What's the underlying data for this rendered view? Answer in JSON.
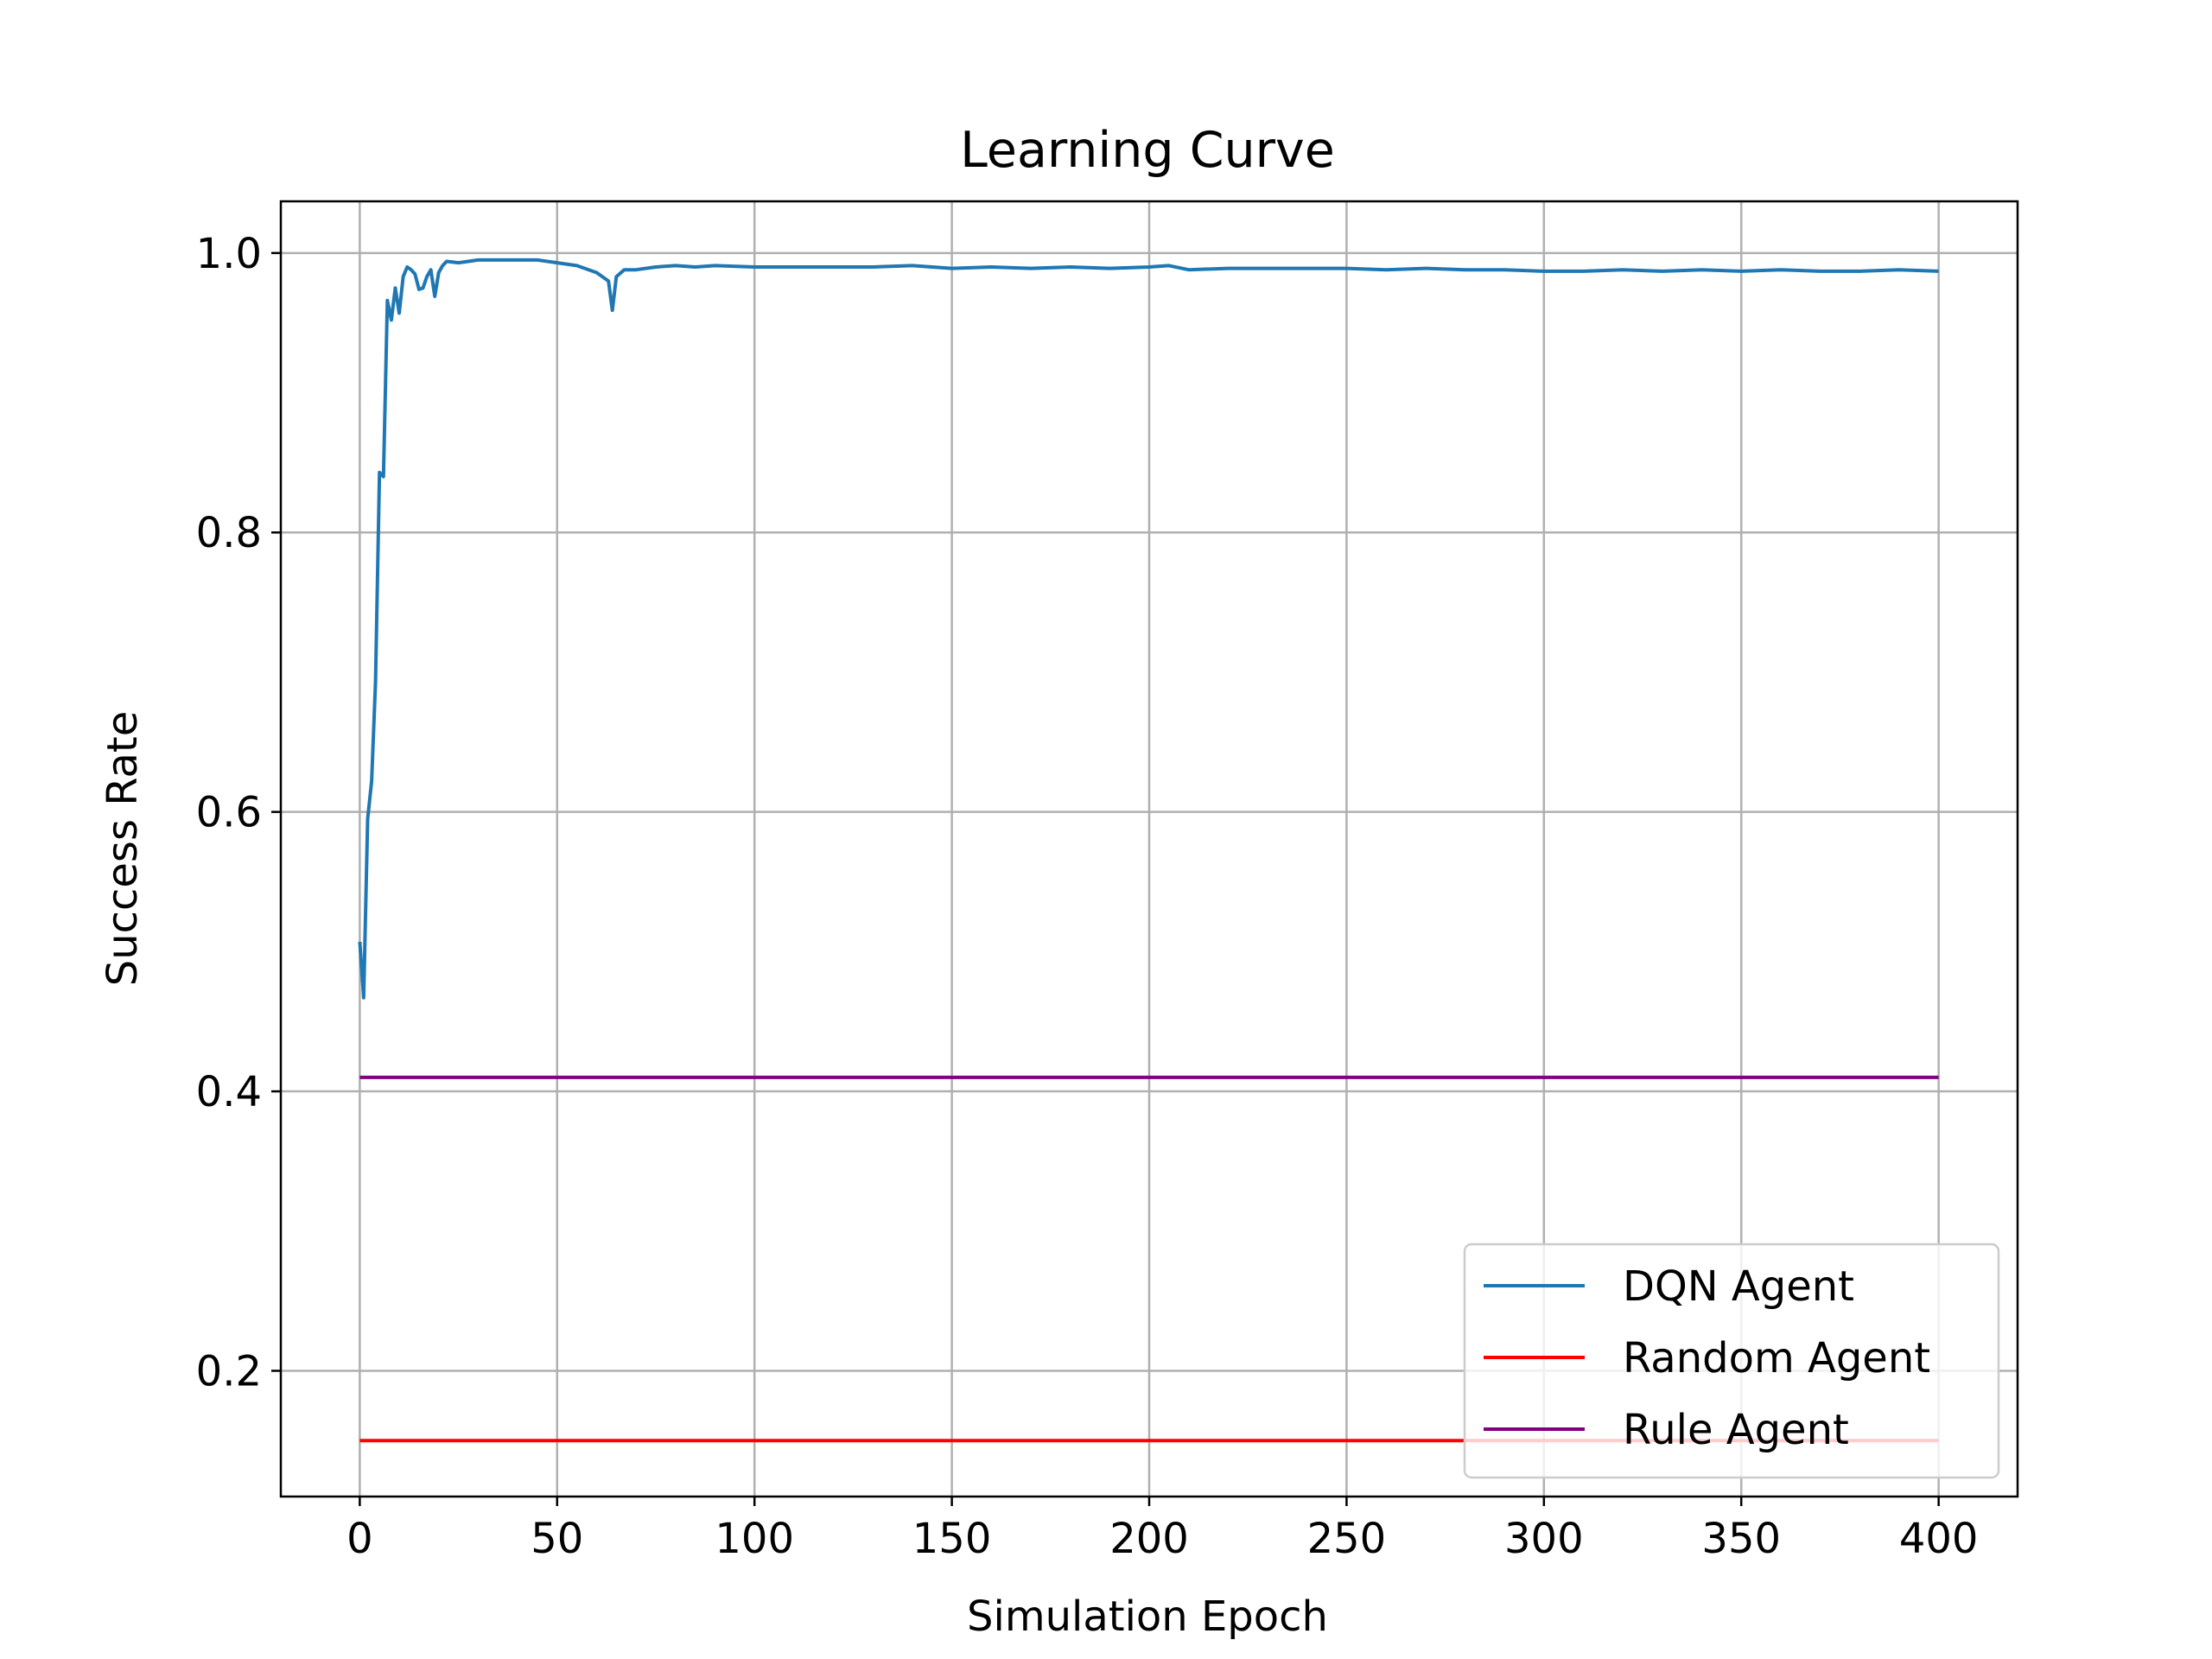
{
  "chart_data": {
    "type": "line",
    "title": "Learning Curve",
    "xlabel": "Simulation Epoch",
    "ylabel": "Success Rate",
    "xlim": [
      -20,
      420
    ],
    "ylim": [
      0.11,
      1.037
    ],
    "xticks": [
      0,
      50,
      100,
      150,
      200,
      250,
      300,
      350,
      400
    ],
    "yticks": [
      0.2,
      0.4,
      0.6,
      0.8,
      1.0
    ],
    "xtick_labels": [
      "0",
      "50",
      "100",
      "150",
      "200",
      "250",
      "300",
      "350",
      "400"
    ],
    "ytick_labels": [
      "0.2",
      "0.4",
      "0.6",
      "0.8",
      "1.0"
    ],
    "grid": true,
    "legend_position": "bottom-right",
    "series": [
      {
        "name": "DQN Agent",
        "color": "#1f77b4",
        "points": [
          [
            0,
            0.507
          ],
          [
            1,
            0.467
          ],
          [
            2,
            0.595
          ],
          [
            3,
            0.622
          ],
          [
            4,
            0.693
          ],
          [
            5,
            0.843
          ],
          [
            6,
            0.84
          ],
          [
            7,
            0.966
          ],
          [
            8,
            0.952
          ],
          [
            9,
            0.975
          ],
          [
            10,
            0.957
          ],
          [
            11,
            0.983
          ],
          [
            12,
            0.99
          ],
          [
            13,
            0.988
          ],
          [
            14,
            0.985
          ],
          [
            15,
            0.974
          ],
          [
            16,
            0.975
          ],
          [
            17,
            0.983
          ],
          [
            18,
            0.988
          ],
          [
            19,
            0.969
          ],
          [
            20,
            0.986
          ],
          [
            21,
            0.991
          ],
          [
            22,
            0.994
          ],
          [
            25,
            0.993
          ],
          [
            30,
            0.995
          ],
          [
            35,
            0.995
          ],
          [
            40,
            0.995
          ],
          [
            45,
            0.995
          ],
          [
            50,
            0.993
          ],
          [
            55,
            0.991
          ],
          [
            60,
            0.986
          ],
          [
            63,
            0.98
          ],
          [
            64,
            0.959
          ],
          [
            65,
            0.983
          ],
          [
            67,
            0.988
          ],
          [
            70,
            0.988
          ],
          [
            75,
            0.99
          ],
          [
            80,
            0.991
          ],
          [
            85,
            0.99
          ],
          [
            90,
            0.991
          ],
          [
            100,
            0.99
          ],
          [
            110,
            0.99
          ],
          [
            120,
            0.99
          ],
          [
            130,
            0.99
          ],
          [
            140,
            0.991
          ],
          [
            150,
            0.989
          ],
          [
            160,
            0.99
          ],
          [
            170,
            0.989
          ],
          [
            180,
            0.99
          ],
          [
            190,
            0.989
          ],
          [
            200,
            0.99
          ],
          [
            205,
            0.991
          ],
          [
            210,
            0.988
          ],
          [
            220,
            0.989
          ],
          [
            230,
            0.989
          ],
          [
            240,
            0.989
          ],
          [
            250,
            0.989
          ],
          [
            260,
            0.988
          ],
          [
            270,
            0.989
          ],
          [
            280,
            0.988
          ],
          [
            290,
            0.988
          ],
          [
            300,
            0.987
          ],
          [
            310,
            0.987
          ],
          [
            320,
            0.988
          ],
          [
            330,
            0.987
          ],
          [
            340,
            0.988
          ],
          [
            350,
            0.987
          ],
          [
            360,
            0.988
          ],
          [
            370,
            0.987
          ],
          [
            380,
            0.987
          ],
          [
            390,
            0.988
          ],
          [
            400,
            0.987
          ]
        ]
      },
      {
        "name": "Random Agent",
        "color": "#ff0000",
        "points": [
          [
            0,
            0.15
          ],
          [
            400,
            0.15
          ]
        ]
      },
      {
        "name": "Rule Agent",
        "color": "#800080",
        "points": [
          [
            0,
            0.41
          ],
          [
            400,
            0.41
          ]
        ]
      }
    ]
  }
}
